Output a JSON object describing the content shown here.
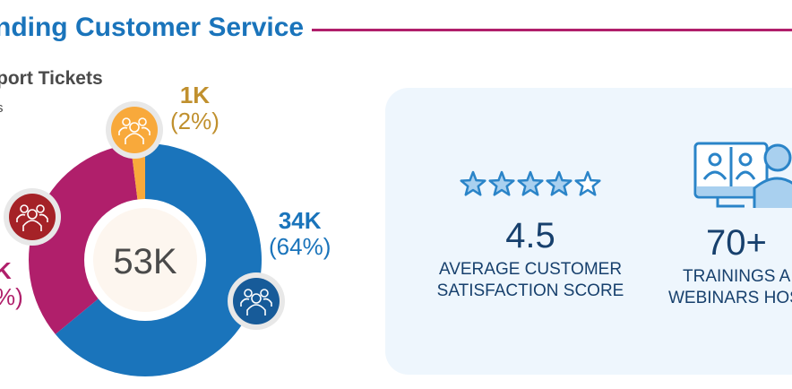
{
  "header": {
    "title": "nding Customer Service",
    "subtitle": "port Tickets",
    "subsub": "s"
  },
  "chart_data": {
    "type": "pie",
    "title": "Support Tickets",
    "center_label": "53K",
    "slices": [
      {
        "name": "blue",
        "value_label": "34K",
        "percent_label": "(64%)",
        "percent": 64,
        "color": "#1a74bb"
      },
      {
        "name": "magenta",
        "value_label": "K",
        "percent_label": "%)",
        "percent": 34,
        "color": "#b01f6b"
      },
      {
        "name": "yellow",
        "value_label": "1K",
        "percent_label": "(2%)",
        "percent": 2,
        "color": "#f8a93b"
      }
    ]
  },
  "stats": [
    {
      "value": "4.5",
      "line1": "AVERAGE CUSTOMER",
      "line2": "SATISFACTION SCORE",
      "stars": 4.5,
      "icon": "star-rating-icon"
    },
    {
      "value": "70+",
      "line1": "TRAININGS A",
      "line2": "WEBINARS HOS",
      "icon": "video-conference-icon"
    }
  ]
}
